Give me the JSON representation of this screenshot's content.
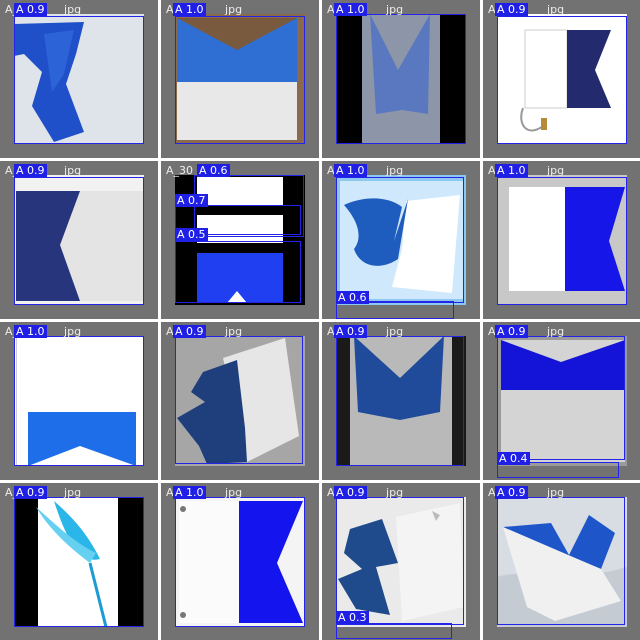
{
  "colors": {
    "tile_bg": "#727272",
    "box": "#2424e8",
    "label_bg": "#1f1fe6",
    "label_text": "#ffffff",
    "filename_text": "#ededed",
    "flag_blue": "#1f3fd6",
    "flag_navy": "#1c2a80"
  },
  "tiles": [
    {
      "filename": "A_",
      "tail": "jpg",
      "labels": [
        "A 0.9"
      ],
      "icon": "flag-alpha-waving"
    },
    {
      "filename": "A_",
      "tail": "jpg",
      "labels": [
        "A 1.0"
      ],
      "icon": "flag-alpha-swallowtail-down"
    },
    {
      "filename": "A_",
      "tail": "jpg",
      "labels": [
        "A 1.0"
      ],
      "icon": "flag-alpha-hanging"
    },
    {
      "filename": "A_",
      "tail": "jpg",
      "labels": [
        "A 0.9"
      ],
      "icon": "flag-alpha-drawing"
    },
    {
      "filename": "A_",
      "tail": "jpg",
      "labels": [
        "A 0.9"
      ],
      "icon": "flag-alpha-table"
    },
    {
      "filename": "A_30",
      "tail": "",
      "labels": [
        "A 0.6",
        "A 0.7",
        "A 0.5"
      ],
      "icon": "flag-alpha-stacked"
    },
    {
      "filename": "A_",
      "tail": "jpg",
      "labels": [
        "A 1.0",
        "A 0.6"
      ],
      "icon": "flag-alpha-wind"
    },
    {
      "filename": "A_",
      "tail": "jpg",
      "labels": [
        "A 1.0"
      ],
      "icon": "flag-alpha-blurred"
    },
    {
      "filename": "A_",
      "tail": "jpg",
      "labels": [
        "A 1.0"
      ],
      "icon": "flag-alpha-inverted"
    },
    {
      "filename": "A_",
      "tail": "jpg",
      "labels": [
        "A 0.9"
      ],
      "icon": "flag-alpha-folded"
    },
    {
      "filename": "A_",
      "tail": "jpg",
      "labels": [
        "A 0.9"
      ],
      "icon": "flag-alpha-hanging-dark"
    },
    {
      "filename": "A_",
      "tail": "jpg",
      "labels": [
        "A 0.9",
        "A 0.4"
      ],
      "icon": "flag-alpha-rotated"
    },
    {
      "filename": "A_",
      "tail": "jpg",
      "labels": [
        "A 0.9"
      ],
      "icon": "flag-alpha-cyan-pole"
    },
    {
      "filename": "A_",
      "tail": "jpg",
      "labels": [
        "A 1.0"
      ],
      "icon": "flag-alpha-grommets"
    },
    {
      "filename": "A_",
      "tail": "jpg",
      "labels": [
        "A 0.9",
        "A 0.3"
      ],
      "icon": "flag-alpha-crumpled"
    },
    {
      "filename": "A_",
      "tail": "jpg",
      "labels": [
        "A 0.9"
      ],
      "icon": "flag-alpha-sea"
    }
  ]
}
